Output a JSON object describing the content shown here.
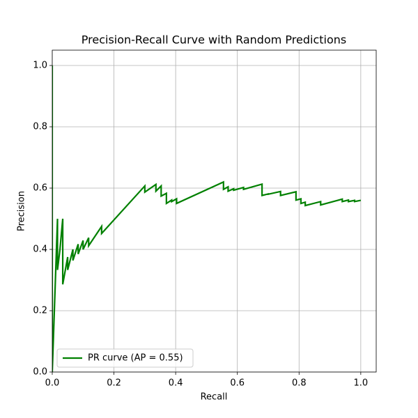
{
  "chart_data": {
    "type": "line",
    "title": "Precision-Recall Curve with Random Predictions",
    "xlabel": "Recall",
    "ylabel": "Precision",
    "x": [
      0,
      0,
      0.017,
      0.017,
      0.025,
      0.034,
      0.034,
      0.05,
      0.05,
      0.067,
      0.067,
      0.084,
      0.084,
      0.1,
      0.1,
      0.118,
      0.118,
      0.16,
      0.16,
      0.3,
      0.3,
      0.336,
      0.336,
      0.353,
      0.353,
      0.37,
      0.37,
      0.387,
      0.387,
      0.403,
      0.403,
      0.555,
      0.555,
      0.57,
      0.57,
      0.588,
      0.588,
      0.62,
      0.62,
      0.68,
      0.68,
      0.7,
      0.7,
      0.74,
      0.74,
      0.79,
      0.79,
      0.806,
      0.806,
      0.82,
      0.82,
      0.87,
      0.87,
      0.94,
      0.94,
      0.96,
      0.96,
      0.98,
      0.98,
      1.0
    ],
    "series": [
      {
        "name": "PR curve (AP = 0.55)",
        "color": "#008000",
        "values": [
          1.0,
          0.0,
          0.5,
          0.333,
          0.4,
          0.5,
          0.286,
          0.375,
          0.333,
          0.4,
          0.364,
          0.417,
          0.385,
          0.429,
          0.4,
          0.438,
          0.412,
          0.475,
          0.452,
          0.607,
          0.587,
          0.612,
          0.59,
          0.607,
          0.574,
          0.583,
          0.55,
          0.561,
          0.556,
          0.565,
          0.55,
          0.62,
          0.596,
          0.604,
          0.59,
          0.598,
          0.593,
          0.602,
          0.596,
          0.613,
          0.576,
          0.581,
          0.58,
          0.589,
          0.576,
          0.588,
          0.561,
          0.565,
          0.55,
          0.554,
          0.543,
          0.556,
          0.545,
          0.564,
          0.556,
          0.561,
          0.556,
          0.56,
          0.556,
          0.56
        ]
      }
    ],
    "xlim": [
      0,
      1.05
    ],
    "ylim": [
      0,
      1.05
    ],
    "xticks": [
      {
        "value": 0,
        "label": "0.0"
      },
      0.2,
      0.4,
      0.6,
      0.8,
      {
        "value": 1,
        "label": "1.0"
      }
    ],
    "yticks": [
      {
        "value": 0,
        "label": "0.0"
      },
      0.2,
      0.4,
      0.6,
      0.8,
      {
        "value": 1,
        "label": "1.0"
      }
    ],
    "grid": true,
    "legend": "lower left"
  }
}
